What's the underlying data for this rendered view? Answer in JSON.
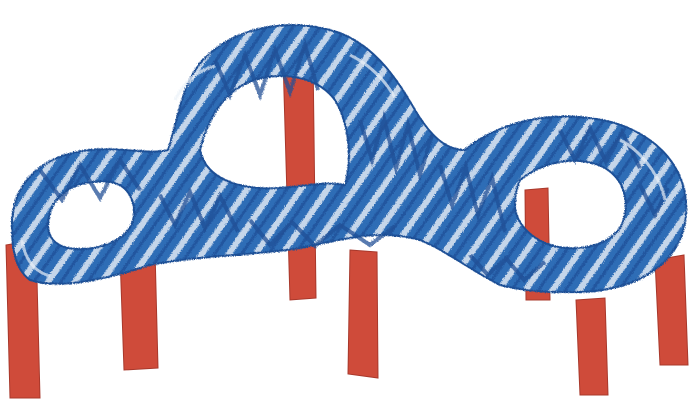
{
  "artwork": {
    "subject": "collage",
    "colors": {
      "background": "#ffffff",
      "track_blue": "#2f6db6",
      "track_dark_blue": "#1f4f96",
      "track_light": "#dfe9f4",
      "support_red": "#cf4b3a",
      "support_dark_red": "#a8382b"
    }
  }
}
